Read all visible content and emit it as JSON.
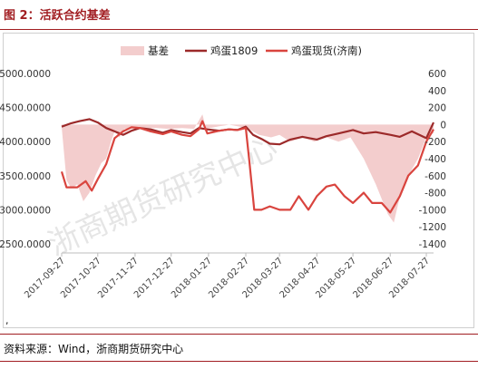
{
  "header": {
    "title": "图 2：活跃合约基差"
  },
  "footer": {
    "source": "资料来源：Wind，浙商期货研究中心",
    "stray_mark": ","
  },
  "watermark": "浙商期货研究中心",
  "colors": {
    "basis_fill": "#f3cdcd",
    "futures_line": "#9c2a2a",
    "spot_line": "#d9443e",
    "accent": "#a11d21"
  },
  "chart_data": {
    "type": "line",
    "legend_position": "top",
    "grid": false,
    "x_tick_labels": [
      "2017-09-27",
      "2017-10-27",
      "2017-11-27",
      "2017-12-27",
      "2018-01-27",
      "2018-02-27",
      "2018-03-27",
      "2018-04-27",
      "2018-05-27",
      "2018-06-27",
      "2018-07-27"
    ],
    "x_range": [
      "2017-09-27",
      "2018-08-02"
    ],
    "left_axis": {
      "ticks": [
        "5000.0000",
        "4500.0000",
        "4000.0000",
        "3500.0000",
        "3000.0000",
        "2500.0000"
      ],
      "range": [
        2500,
        5000
      ]
    },
    "right_axis": {
      "ticks": [
        "600",
        "400",
        "200",
        "0",
        "-200",
        "-400",
        "-600",
        "-800",
        "-1000",
        "-1200",
        "-1400"
      ],
      "range": [
        -1400,
        600
      ]
    },
    "series": [
      {
        "name": "基差",
        "kind": "area",
        "axis": "right",
        "points": [
          [
            "2017-09-27",
            -30
          ],
          [
            "2017-10-01",
            -650
          ],
          [
            "2017-10-05",
            -750
          ],
          [
            "2017-10-10",
            -700
          ],
          [
            "2017-10-15",
            -900
          ],
          [
            "2017-10-20",
            -800
          ],
          [
            "2017-10-25",
            -600
          ],
          [
            "2017-10-30",
            -450
          ],
          [
            "2017-11-03",
            -400
          ],
          [
            "2017-11-07",
            -200
          ],
          [
            "2017-11-10",
            -80
          ],
          [
            "2017-11-14",
            -150
          ],
          [
            "2017-11-18",
            -50
          ],
          [
            "2017-11-25",
            -40
          ],
          [
            "2017-12-05",
            -40
          ],
          [
            "2017-12-15",
            -40
          ],
          [
            "2017-12-25",
            -50
          ],
          [
            "2018-01-05",
            -40
          ],
          [
            "2018-01-15",
            -50
          ],
          [
            "2018-01-22",
            120
          ],
          [
            "2018-01-25",
            -50
          ],
          [
            "2018-02-05",
            -20
          ],
          [
            "2018-02-10",
            -10
          ],
          [
            "2018-02-13",
            0
          ],
          [
            "2018-02-28",
            -40
          ],
          [
            "2018-03-10",
            -120
          ],
          [
            "2018-03-20",
            -150
          ],
          [
            "2018-03-27",
            -120
          ],
          [
            "2018-04-05",
            -200
          ],
          [
            "2018-04-15",
            -150
          ],
          [
            "2018-04-25",
            -200
          ],
          [
            "2018-05-05",
            -150
          ],
          [
            "2018-05-15",
            -200
          ],
          [
            "2018-05-25",
            -150
          ],
          [
            "2018-06-05",
            -400
          ],
          [
            "2018-06-15",
            -700
          ],
          [
            "2018-06-25",
            -1050
          ],
          [
            "2018-06-30",
            -1150
          ],
          [
            "2018-07-05",
            -850
          ],
          [
            "2018-07-10",
            -650
          ],
          [
            "2018-07-20",
            -400
          ],
          [
            "2018-07-27",
            -150
          ],
          [
            "2018-08-02",
            -100
          ]
        ]
      },
      {
        "name": "鸡蛋1809",
        "kind": "line",
        "axis": "left",
        "points": [
          [
            "2017-09-27",
            4220
          ],
          [
            "2017-10-05",
            4270
          ],
          [
            "2017-10-12",
            4300
          ],
          [
            "2017-10-20",
            4330
          ],
          [
            "2017-10-27",
            4280
          ],
          [
            "2017-11-03",
            4200
          ],
          [
            "2017-11-10",
            4150
          ],
          [
            "2017-11-17",
            4100
          ],
          [
            "2017-11-24",
            4160
          ],
          [
            "2017-12-01",
            4200
          ],
          [
            "2017-12-10",
            4180
          ],
          [
            "2017-12-20",
            4130
          ],
          [
            "2017-12-27",
            4170
          ],
          [
            "2018-01-05",
            4140
          ],
          [
            "2018-01-12",
            4120
          ],
          [
            "2018-01-19",
            4200
          ],
          [
            "2018-01-26",
            4180
          ],
          [
            "2018-02-05",
            4160
          ],
          [
            "2018-02-13",
            4180
          ],
          [
            "2018-02-20",
            4170
          ],
          [
            "2018-02-27",
            4220
          ],
          [
            "2018-03-05",
            4100
          ],
          [
            "2018-03-12",
            4040
          ],
          [
            "2018-03-19",
            3970
          ],
          [
            "2018-03-27",
            3960
          ],
          [
            "2018-04-05",
            4030
          ],
          [
            "2018-04-15",
            4070
          ],
          [
            "2018-04-27",
            4030
          ],
          [
            "2018-05-05",
            4080
          ],
          [
            "2018-05-15",
            4120
          ],
          [
            "2018-05-27",
            4170
          ],
          [
            "2018-06-05",
            4120
          ],
          [
            "2018-06-15",
            4140
          ],
          [
            "2018-06-27",
            4100
          ],
          [
            "2018-07-05",
            4070
          ],
          [
            "2018-07-15",
            4150
          ],
          [
            "2018-07-27",
            4050
          ],
          [
            "2018-08-02",
            4280
          ]
        ]
      },
      {
        "name": "鸡蛋现货(济南)",
        "kind": "line",
        "axis": "left",
        "points": [
          [
            "2017-09-27",
            3560
          ],
          [
            "2017-10-01",
            3330
          ],
          [
            "2017-10-10",
            3330
          ],
          [
            "2017-10-17",
            3420
          ],
          [
            "2017-10-22",
            3280
          ],
          [
            "2017-10-27",
            3450
          ],
          [
            "2017-11-03",
            3670
          ],
          [
            "2017-11-10",
            4050
          ],
          [
            "2017-11-17",
            4150
          ],
          [
            "2017-11-24",
            4210
          ],
          [
            "2017-12-01",
            4200
          ],
          [
            "2017-12-10",
            4150
          ],
          [
            "2017-12-20",
            4110
          ],
          [
            "2017-12-27",
            4150
          ],
          [
            "2018-01-05",
            4100
          ],
          [
            "2018-01-12",
            4080
          ],
          [
            "2018-01-19",
            4180
          ],
          [
            "2018-01-22",
            4300
          ],
          [
            "2018-01-26",
            4120
          ],
          [
            "2018-02-05",
            4160
          ],
          [
            "2018-02-13",
            4180
          ],
          [
            "2018-02-20",
            4170
          ],
          [
            "2018-02-27",
            4200
          ],
          [
            "2018-03-02",
            3700
          ],
          [
            "2018-03-06",
            3000
          ],
          [
            "2018-03-12",
            3000
          ],
          [
            "2018-03-19",
            3050
          ],
          [
            "2018-03-27",
            3000
          ],
          [
            "2018-04-05",
            3000
          ],
          [
            "2018-04-12",
            3200
          ],
          [
            "2018-04-20",
            3000
          ],
          [
            "2018-04-27",
            3200
          ],
          [
            "2018-05-05",
            3340
          ],
          [
            "2018-05-12",
            3370
          ],
          [
            "2018-05-20",
            3200
          ],
          [
            "2018-05-27",
            3100
          ],
          [
            "2018-06-05",
            3250
          ],
          [
            "2018-06-12",
            3100
          ],
          [
            "2018-06-20",
            3100
          ],
          [
            "2018-06-27",
            2960
          ],
          [
            "2018-07-05",
            3200
          ],
          [
            "2018-07-12",
            3500
          ],
          [
            "2018-07-20",
            3650
          ],
          [
            "2018-07-27",
            4000
          ],
          [
            "2018-08-02",
            4180
          ]
        ]
      }
    ]
  }
}
